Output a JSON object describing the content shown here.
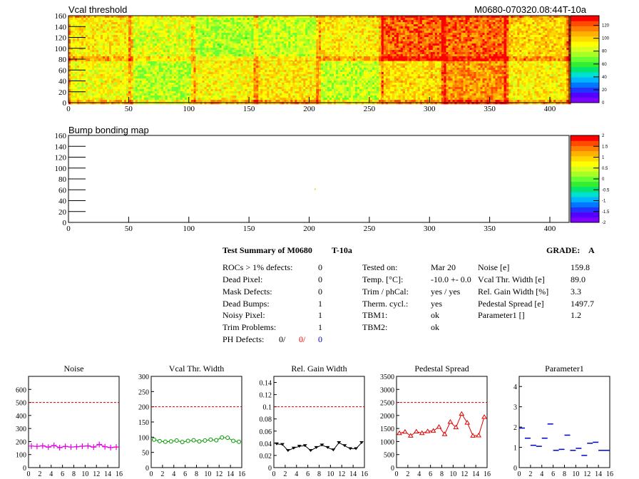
{
  "header": {
    "map_title": "Vcal threshold",
    "module_id": "M0680-070320.08:44T-10a",
    "bump_title": "Bump bonding map"
  },
  "colors": {
    "palette": [
      "#7f00ff",
      "#5500ff",
      "#2233ff",
      "#0077ff",
      "#00b4ff",
      "#00e0d0",
      "#00e66e",
      "#33ee33",
      "#66ff33",
      "#a8ff26",
      "#d8ff1f",
      "#ffff00",
      "#ffd800",
      "#ffb000",
      "#ff8000",
      "#ff4a00",
      "#ff0000"
    ],
    "subplot_line": "#cc0000",
    "noise_series": "#e600e6",
    "width_series": "#009900",
    "gain_series": "#000000",
    "pedestal_series": "#dd0000",
    "param_series": "#0000cc",
    "ph_red": "#ff0000",
    "ph_blue": "#0000cc"
  },
  "summary": {
    "title": "Test Summary of M0680",
    "temp_tag": "T-10a",
    "grade_label": "GRADE:",
    "grade_value": "A",
    "left": [
      {
        "label": "ROCs > 1% defects:",
        "value": "0"
      },
      {
        "label": "Dead Pixel:",
        "value": "0"
      },
      {
        "label": "Mask Defects:",
        "value": "0"
      },
      {
        "label": "Dead Bumps:",
        "value": "1"
      },
      {
        "label": "Noisy Pixel:",
        "value": "1"
      },
      {
        "label": "Trim Problems:",
        "value": "1"
      }
    ],
    "ph_label": "PH Defects:",
    "ph_values": [
      "0/",
      "0/",
      "0"
    ],
    "mid": [
      {
        "label": "Tested on:",
        "value": "Mar 20"
      },
      {
        "label": "Temp. [°C]:",
        "value": "-10.0 +- 0.0"
      },
      {
        "label": "Trim / phCal:",
        "value": "yes / yes"
      },
      {
        "label": "Therm. cycl.:",
        "value": "yes"
      },
      {
        "label": "TBM1:",
        "value": "ok"
      },
      {
        "label": "TBM2:",
        "value": "ok"
      }
    ],
    "right": [
      {
        "label": "Noise [e]",
        "value": "159.8"
      },
      {
        "label": "Vcal Thr. Width [e]",
        "value": "89.0"
      },
      {
        "label": "Rel. Gain Width [%]",
        "value": "3.3"
      },
      {
        "label": "Pedestal Spread [e]",
        "value": "1497.7"
      },
      {
        "label": "Parameter1 []",
        "value": "1.2"
      }
    ]
  },
  "chart_data": [
    {
      "type": "heatmap",
      "title": "Vcal threshold",
      "xlim": [
        0,
        416
      ],
      "ylim": [
        0,
        160
      ],
      "x_ticks": [
        0,
        50,
        100,
        150,
        200,
        250,
        300,
        350,
        400
      ],
      "y_ticks": [
        0,
        20,
        40,
        60,
        80,
        100,
        120,
        140,
        160
      ],
      "z_ticks": [
        0,
        20,
        40,
        60,
        80,
        100,
        120
      ],
      "zlim": [
        0,
        135
      ],
      "roc_mean_values": [
        [
          90,
          78,
          92,
          95,
          80,
          98,
          112,
          93
        ],
        [
          94,
          84,
          77,
          80,
          93,
          120,
          118,
          100
        ]
      ]
    },
    {
      "type": "heatmap",
      "title": "Bump bonding map",
      "xlim": [
        0,
        416
      ],
      "ylim": [
        0,
        160
      ],
      "x_ticks": [
        0,
        50,
        100,
        150,
        200,
        250,
        300,
        350,
        400
      ],
      "y_ticks": [
        0,
        20,
        40,
        60,
        80,
        100,
        120,
        140,
        160
      ],
      "z_ticks": [
        -2,
        -1.5,
        -1,
        -0.5,
        0,
        0.5,
        1,
        1.5,
        2
      ],
      "zlim": [
        -2,
        2
      ],
      "points": [
        {
          "x": 205,
          "y": 61,
          "z": 0.3
        }
      ]
    },
    {
      "type": "line",
      "title": "Noise",
      "x": [
        0,
        1,
        2,
        3,
        4,
        5,
        6,
        7,
        8,
        9,
        10,
        11,
        12,
        13,
        14,
        15
      ],
      "values": [
        165,
        163,
        167,
        157,
        170,
        153,
        163,
        158,
        160,
        164,
        166,
        157,
        178,
        160,
        154,
        158
      ],
      "xlim": [
        0,
        16
      ],
      "ylim": [
        0,
        700
      ],
      "x_ticks": [
        0,
        2,
        4,
        6,
        8,
        10,
        12,
        14,
        16
      ],
      "y_ticks": [
        0,
        100,
        200,
        300,
        400,
        500,
        600
      ],
      "reference_line": 500
    },
    {
      "type": "line",
      "title": "Vcal Thr. Width",
      "x": [
        0,
        1,
        2,
        3,
        4,
        5,
        6,
        7,
        8,
        9,
        10,
        11,
        12,
        13,
        14,
        15
      ],
      "values": [
        92,
        87,
        85,
        86,
        89,
        84,
        88,
        90,
        86,
        89,
        92,
        90,
        99,
        98,
        88,
        85
      ],
      "xlim": [
        0,
        16
      ],
      "ylim": [
        0,
        300
      ],
      "x_ticks": [
        0,
        2,
        4,
        6,
        8,
        10,
        12,
        14,
        16
      ],
      "y_ticks": [
        0,
        50,
        100,
        150,
        200,
        250,
        300
      ],
      "reference_line": 200
    },
    {
      "type": "line",
      "title": "Rel. Gain Width",
      "x": [
        0,
        1,
        2,
        3,
        4,
        5,
        6,
        7,
        8,
        9,
        10,
        11,
        12,
        13,
        14,
        15
      ],
      "values": [
        0.039,
        0.038,
        0.028,
        0.032,
        0.035,
        0.036,
        0.028,
        0.033,
        0.037,
        0.033,
        0.029,
        0.041,
        0.036,
        0.031,
        0.031,
        0.041
      ],
      "xlim": [
        0,
        16
      ],
      "ylim": [
        0,
        0.15
      ],
      "x_ticks": [
        0,
        2,
        4,
        6,
        8,
        10,
        12,
        14,
        16
      ],
      "y_ticks": [
        0,
        0.02,
        0.04,
        0.06,
        0.08,
        0.1,
        0.12,
        0.14
      ],
      "reference_line": 0.1
    },
    {
      "type": "line",
      "title": "Pedestal Spread",
      "x": [
        0,
        1,
        2,
        3,
        4,
        5,
        6,
        7,
        8,
        9,
        10,
        11,
        12,
        13,
        14,
        15
      ],
      "values": [
        1320,
        1370,
        1220,
        1380,
        1320,
        1390,
        1410,
        1560,
        1280,
        1750,
        1540,
        2060,
        1720,
        1220,
        1230,
        1940
      ],
      "xlim": [
        0,
        16
      ],
      "ylim": [
        0,
        3500
      ],
      "x_ticks": [
        0,
        2,
        4,
        6,
        8,
        10,
        12,
        14,
        16
      ],
      "y_ticks": [
        0,
        500,
        1000,
        1500,
        2000,
        2500,
        3000,
        3500
      ],
      "reference_line": 2500
    },
    {
      "type": "scatter",
      "title": "Parameter1",
      "x": [
        0,
        1,
        2,
        3,
        4,
        5,
        6,
        7,
        8,
        9,
        10,
        11,
        12,
        13,
        14,
        15
      ],
      "values": [
        1.95,
        1.45,
        1.1,
        1.05,
        1.45,
        2.15,
        0.85,
        0.9,
        1.6,
        0.85,
        0.95,
        0.6,
        1.2,
        1.25,
        0.85,
        0.85
      ],
      "xlim": [
        0,
        16
      ],
      "ylim": [
        0,
        4.5
      ],
      "x_ticks": [
        0,
        2,
        4,
        6,
        8,
        10,
        12,
        14,
        16
      ],
      "y_ticks": [
        0,
        1,
        2,
        3,
        4
      ]
    }
  ]
}
